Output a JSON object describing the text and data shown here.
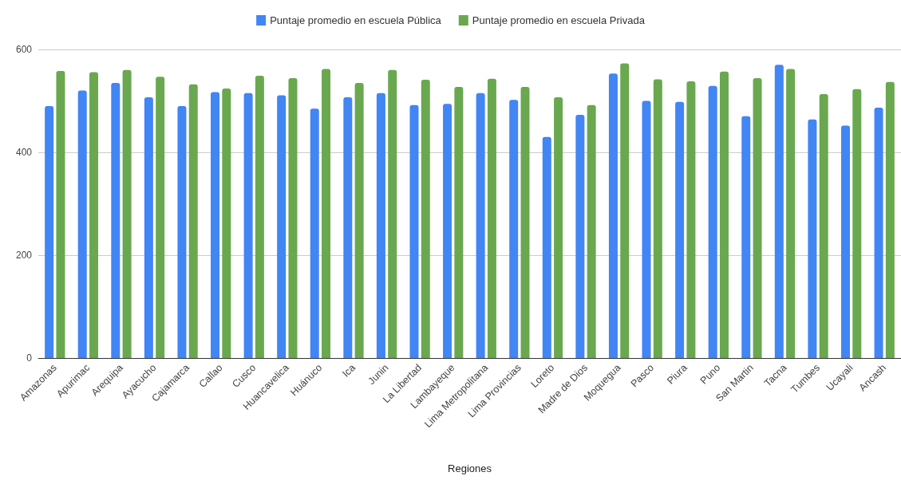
{
  "chart_data": {
    "type": "bar",
    "xlabel": "Regiones",
    "categories": [
      "Amazonas",
      "Apurimac",
      "Arequipa",
      "Ayacucho",
      "Cajamarca",
      "Callao",
      "Cusco",
      "Huancavelica",
      "Huánuco",
      "Ica",
      "Junin",
      "La Libertad",
      "Lambayeque",
      "Lima Metropolitana",
      "Lima Provincias",
      "Loreto",
      "Madre de Dios",
      "Moquegua",
      "Pasco",
      "Piura",
      "Puno",
      "San Martin",
      "Tacna",
      "Tumbes",
      "Ucayali",
      "Ancash"
    ],
    "series": [
      {
        "name": "Puntaje promedio en escuela Pública",
        "color": "#4285f4",
        "values": [
          490,
          520,
          535,
          507,
          490,
          517,
          515,
          511,
          485,
          507,
          515,
          492,
          494,
          515,
          502,
          430,
          473,
          553,
          500,
          498,
          529,
          470,
          570,
          464,
          452,
          487
        ]
      },
      {
        "name": "Puntaje promedio en escuela Privada",
        "color": "#6aa84f",
        "values": [
          558,
          556,
          560,
          547,
          532,
          524,
          549,
          544,
          562,
          535,
          560,
          541,
          527,
          543,
          527,
          507,
          492,
          573,
          542,
          538,
          557,
          544,
          562,
          513,
          523,
          537
        ]
      }
    ],
    "ylim": [
      0,
      600
    ],
    "yticks": [
      0,
      200,
      400,
      600
    ],
    "grid": "y",
    "legend": "top"
  }
}
